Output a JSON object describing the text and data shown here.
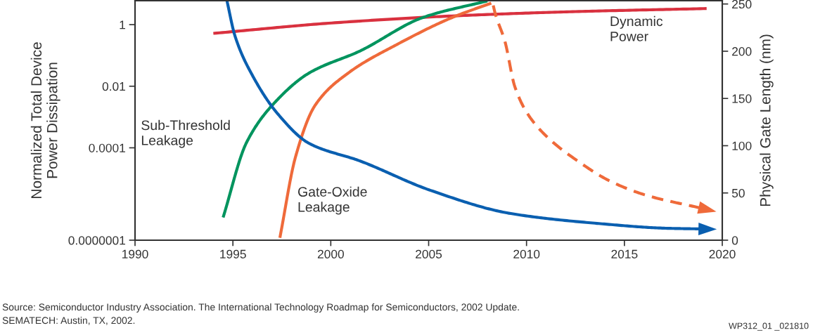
{
  "chart_data": {
    "type": "line",
    "ylabel": "Normalized Total Device\nPower Dissipation",
    "y2label": "Physical Gate Length (nm)",
    "log": "y",
    "grid": false,
    "xlim": [
      1990,
      2020
    ],
    "xticks": [
      1990,
      1995,
      2000,
      2005,
      2010,
      2015,
      2020
    ],
    "ylim": [
      1e-07,
      6
    ],
    "yticks": [
      {
        "value": 1e-07,
        "label": "0.0000001"
      },
      {
        "value": 0.0001,
        "label": "0.0001"
      },
      {
        "value": 0.01,
        "label": "0.01"
      },
      {
        "value": 1,
        "label": "1"
      }
    ],
    "y2lim": [
      0,
      253.5
    ],
    "y2ticks": [
      0,
      50,
      100,
      150,
      200,
      250
    ],
    "series": [
      {
        "name": "Dynamic Power",
        "color": "#d9313f",
        "x": [
          1994.0,
          2000.2,
          2006.5,
          2012.5,
          2019.2
        ],
        "values": [
          0.52,
          1.15,
          1.95,
          2.65,
          3.33
        ]
      },
      {
        "name": "Sub-Threshold Leakage",
        "color": "#00945e",
        "x": [
          1994.5,
          1995.7,
          1997.3,
          1998.9,
          2001.5,
          2004.7,
          2008.0
        ],
        "values": [
          5.5e-07,
          0.00015,
          0.0038,
          0.027,
          0.14,
          1.7,
          5.9
        ]
      },
      {
        "name": "Gate-Oxide Leakage",
        "color": "#ef6a3a",
        "x": [
          1997.4,
          1998.2,
          1999.2,
          2000.9,
          2003.4,
          2006.2,
          2008.2
        ],
        "values": [
          1.2e-07,
          5.1e-05,
          0.0024,
          0.027,
          0.23,
          1.7,
          5.0
        ]
      },
      {
        "color": "#ef6a3a",
        "line_style": "dashed",
        "x": [
          2008.3,
          2008.4,
          2008.9,
          2009.4,
          2010.1,
          2011.2,
          2012.5,
          2014.3,
          2016.1,
          2019.0
        ],
        "values": [
          4.2,
          2.3,
          0.28,
          0.0098,
          0.00115,
          0.000185,
          4.2e-05,
          8.1e-06,
          2.9e-06,
          1.07e-06
        ]
      },
      {
        "color": "#0a5fb0",
        "axis": "y2",
        "x": [
          1994.7,
          1995.1,
          1996.0,
          1997.3,
          1998.9,
          2001.5,
          2005.1,
          2009.2,
          2013.6,
          2017.2,
          2019.0
        ],
        "values": [
          253,
          216.6,
          174.3,
          133.5,
          102.4,
          83.8,
          52.7,
          28.2,
          17.8,
          12.6,
          11.9
        ]
      }
    ],
    "annotations": [
      "Source: Semiconductor Industry Association. The International Technology Roadmap for Semiconductors, 2002 Update.\nSEMATECH: Austin, TX, 2002.",
      "WP312_01 _021810"
    ]
  }
}
